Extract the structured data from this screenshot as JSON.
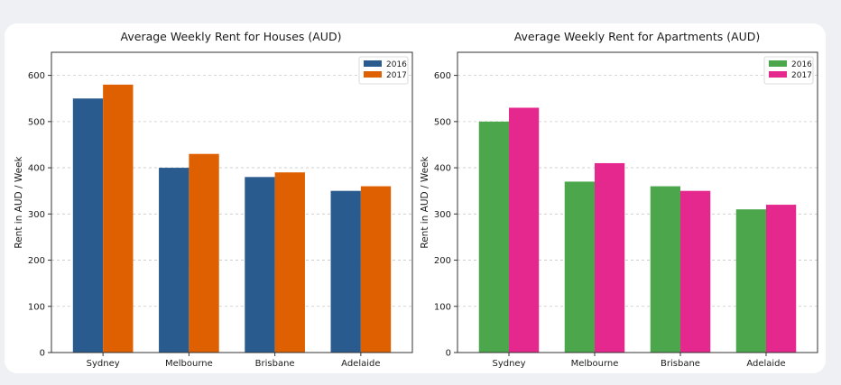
{
  "chart_data": [
    {
      "type": "bar",
      "title": "Average Weekly Rent for Houses (AUD)",
      "xlabel": "",
      "ylabel": "Rent in AUD / Week",
      "ylim": [
        0,
        650
      ],
      "yticks": [
        0,
        100,
        200,
        300,
        400,
        500,
        600
      ],
      "categories": [
        "Sydney",
        "Melbourne",
        "Brisbane",
        "Adelaide"
      ],
      "grid": "horizontal dashed",
      "legend": "top-right",
      "series": [
        {
          "name": "2016",
          "color": "#2a5b8f",
          "values": [
            550,
            400,
            380,
            350
          ]
        },
        {
          "name": "2017",
          "color": "#de6000",
          "values": [
            580,
            430,
            390,
            360
          ]
        }
      ]
    },
    {
      "type": "bar",
      "title": "Average Weekly Rent for Apartments (AUD)",
      "xlabel": "",
      "ylabel": "Rent in AUD / Week",
      "ylim": [
        0,
        650
      ],
      "yticks": [
        0,
        100,
        200,
        300,
        400,
        500,
        600
      ],
      "categories": [
        "Sydney",
        "Melbourne",
        "Brisbane",
        "Adelaide"
      ],
      "grid": "horizontal dashed",
      "legend": "top-right",
      "series": [
        {
          "name": "2016",
          "color": "#4ca64c",
          "values": [
            500,
            370,
            360,
            310
          ]
        },
        {
          "name": "2017",
          "color": "#e5288e",
          "values": [
            530,
            410,
            350,
            320
          ]
        }
      ]
    }
  ]
}
